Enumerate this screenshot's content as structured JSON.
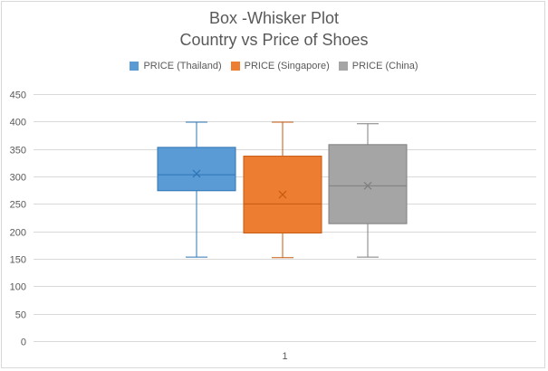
{
  "chart_data": {
    "type": "box",
    "title": "Box -Whisker Plot",
    "subtitle": "Country vs Price of Shoes",
    "categories": [
      "1"
    ],
    "ylim": [
      0,
      450
    ],
    "yticks": [
      0,
      50,
      100,
      150,
      200,
      250,
      300,
      350,
      400,
      450
    ],
    "grid": true,
    "legend_position": "top",
    "series": [
      {
        "name": "PRICE (Thailand)",
        "color": "#5b9bd5",
        "stroke": "#2e75b6",
        "min": 153,
        "q1": 274,
        "median": 303,
        "q3": 353,
        "max": 399,
        "mean": 305
      },
      {
        "name": "PRICE (Singapore)",
        "color": "#ed7d31",
        "stroke": "#c55a11",
        "min": 152,
        "q1": 197,
        "median": 250,
        "q3": 337,
        "max": 399,
        "mean": 267
      },
      {
        "name": "PRICE (China)",
        "color": "#a5a5a5",
        "stroke": "#7f7f7f",
        "min": 153,
        "q1": 214,
        "median": 283,
        "q3": 358,
        "max": 396,
        "mean": 283
      }
    ]
  }
}
